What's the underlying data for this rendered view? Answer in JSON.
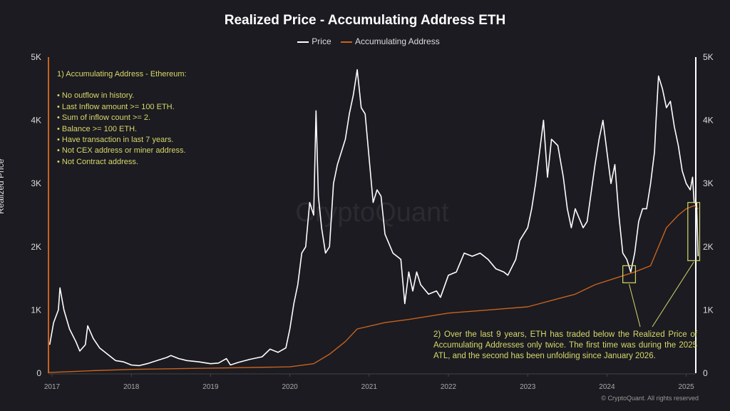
{
  "chart_data": {
    "type": "line",
    "title": "Realized Price - Accumulating Address ETH",
    "ylabel": "Realized Price",
    "ylim": [
      0,
      5000
    ],
    "xlim": [
      2016.95,
      2025.2
    ],
    "y_ticks": [
      "0",
      "1K",
      "2K",
      "3K",
      "4K",
      "5K"
    ],
    "x_ticks": [
      "2017",
      "2018",
      "2019",
      "2020",
      "2021",
      "2022",
      "2023",
      "2024",
      "2025"
    ],
    "legend_position": "top-center",
    "grid": false,
    "watermark": "CryptoQuant",
    "series": [
      {
        "name": "Price",
        "color": "#ffffff",
        "points": [
          [
            2016.97,
            450
          ],
          [
            2017.02,
            800
          ],
          [
            2017.08,
            1000
          ],
          [
            2017.1,
            1350
          ],
          [
            2017.15,
            1000
          ],
          [
            2017.22,
            700
          ],
          [
            2017.3,
            500
          ],
          [
            2017.35,
            350
          ],
          [
            2017.42,
            450
          ],
          [
            2017.45,
            750
          ],
          [
            2017.52,
            550
          ],
          [
            2017.6,
            400
          ],
          [
            2017.7,
            300
          ],
          [
            2017.8,
            200
          ],
          [
            2017.9,
            180
          ],
          [
            2018.0,
            130
          ],
          [
            2018.1,
            120
          ],
          [
            2018.2,
            150
          ],
          [
            2018.35,
            210
          ],
          [
            2018.45,
            250
          ],
          [
            2018.5,
            280
          ],
          [
            2018.6,
            230
          ],
          [
            2018.7,
            200
          ],
          [
            2018.85,
            180
          ],
          [
            2019.0,
            150
          ],
          [
            2019.1,
            160
          ],
          [
            2019.2,
            230
          ],
          [
            2019.25,
            130
          ],
          [
            2019.35,
            170
          ],
          [
            2019.5,
            220
          ],
          [
            2019.65,
            260
          ],
          [
            2019.75,
            380
          ],
          [
            2019.85,
            330
          ],
          [
            2019.95,
            400
          ],
          [
            2020.0,
            700
          ],
          [
            2020.05,
            1100
          ],
          [
            2020.1,
            1400
          ],
          [
            2020.15,
            1900
          ],
          [
            2020.2,
            2000
          ],
          [
            2020.25,
            2700
          ],
          [
            2020.3,
            2500
          ],
          [
            2020.33,
            4150
          ],
          [
            2020.36,
            2800
          ],
          [
            2020.4,
            2300
          ],
          [
            2020.45,
            1900
          ],
          [
            2020.5,
            2000
          ],
          [
            2020.55,
            3000
          ],
          [
            2020.6,
            3300
          ],
          [
            2020.65,
            3500
          ],
          [
            2020.7,
            3700
          ],
          [
            2020.75,
            4100
          ],
          [
            2020.8,
            4400
          ],
          [
            2020.85,
            4800
          ],
          [
            2020.9,
            4200
          ],
          [
            2020.95,
            4100
          ],
          [
            2021.0,
            3400
          ],
          [
            2021.05,
            2700
          ],
          [
            2021.1,
            2900
          ],
          [
            2021.15,
            2800
          ],
          [
            2021.2,
            2200
          ],
          [
            2021.3,
            1900
          ],
          [
            2021.4,
            1800
          ],
          [
            2021.45,
            1100
          ],
          [
            2021.5,
            1600
          ],
          [
            2021.55,
            1300
          ],
          [
            2021.6,
            1600
          ],
          [
            2021.65,
            1400
          ],
          [
            2021.75,
            1250
          ],
          [
            2021.85,
            1300
          ],
          [
            2021.9,
            1200
          ],
          [
            2022.0,
            1550
          ],
          [
            2022.1,
            1600
          ],
          [
            2022.2,
            1900
          ],
          [
            2022.3,
            1850
          ],
          [
            2022.4,
            1900
          ],
          [
            2022.5,
            1800
          ],
          [
            2022.6,
            1650
          ],
          [
            2022.7,
            1600
          ],
          [
            2022.75,
            1550
          ],
          [
            2022.85,
            1800
          ],
          [
            2022.9,
            2100
          ],
          [
            2023.0,
            2300
          ],
          [
            2023.05,
            2600
          ],
          [
            2023.1,
            3000
          ],
          [
            2023.15,
            3500
          ],
          [
            2023.2,
            4000
          ],
          [
            2023.25,
            3100
          ],
          [
            2023.3,
            3700
          ],
          [
            2023.38,
            3600
          ],
          [
            2023.45,
            3100
          ],
          [
            2023.5,
            2600
          ],
          [
            2023.55,
            2300
          ],
          [
            2023.6,
            2600
          ],
          [
            2023.7,
            2300
          ],
          [
            2023.75,
            2400
          ],
          [
            2023.85,
            3300
          ],
          [
            2023.9,
            3700
          ],
          [
            2023.95,
            4000
          ],
          [
            2024.0,
            3500
          ],
          [
            2024.05,
            3000
          ],
          [
            2024.1,
            3300
          ],
          [
            2024.15,
            2500
          ],
          [
            2024.2,
            1900
          ],
          [
            2024.25,
            1800
          ],
          [
            2024.3,
            1600
          ],
          [
            2024.35,
            1900
          ],
          [
            2024.4,
            2400
          ],
          [
            2024.45,
            2600
          ],
          [
            2024.5,
            2600
          ],
          [
            2024.55,
            3000
          ],
          [
            2024.6,
            3500
          ],
          [
            2024.62,
            4000
          ],
          [
            2024.65,
            4700
          ],
          [
            2024.7,
            4500
          ],
          [
            2024.75,
            4200
          ],
          [
            2024.8,
            4300
          ],
          [
            2024.85,
            3900
          ],
          [
            2024.9,
            3600
          ],
          [
            2024.95,
            3200
          ],
          [
            2025.0,
            3000
          ],
          [
            2025.05,
            2900
          ],
          [
            2025.08,
            3100
          ],
          [
            2025.1,
            2700
          ],
          [
            2025.13,
            2700
          ],
          [
            2025.15,
            1850
          ]
        ]
      },
      {
        "name": "Accumulating Address",
        "color": "#c8621e",
        "points": [
          [
            2016.95,
            10
          ],
          [
            2017.5,
            40
          ],
          [
            2018.0,
            60
          ],
          [
            2019.0,
            80
          ],
          [
            2020.0,
            100
          ],
          [
            2020.3,
            150
          ],
          [
            2020.5,
            300
          ],
          [
            2020.7,
            500
          ],
          [
            2020.85,
            700
          ],
          [
            2021.2,
            800
          ],
          [
            2021.5,
            850
          ],
          [
            2022.0,
            950
          ],
          [
            2022.5,
            1000
          ],
          [
            2023.0,
            1050
          ],
          [
            2023.3,
            1150
          ],
          [
            2023.6,
            1250
          ],
          [
            2023.85,
            1400
          ],
          [
            2024.1,
            1500
          ],
          [
            2024.35,
            1600
          ],
          [
            2024.55,
            1700
          ],
          [
            2024.65,
            2000
          ],
          [
            2024.75,
            2300
          ],
          [
            2024.9,
            2500
          ],
          [
            2025.0,
            2600
          ],
          [
            2025.1,
            2650
          ],
          [
            2025.15,
            2600
          ]
        ]
      }
    ],
    "highlights": [
      {
        "x": [
          2024.2,
          2024.36
        ],
        "y": [
          1430,
          1700
        ]
      },
      {
        "x": [
          2025.02,
          2025.17
        ],
        "y": [
          1780,
          2700
        ]
      }
    ],
    "annotation_color": "#d8d86a"
  },
  "notes": {
    "note1_title": "1) Accumulating Address - Ethereum:",
    "note1_items": [
      "• No outflow in history.",
      "• Last Inflow amount >= 100 ETH.",
      "• Sum of inflow count >= 2.",
      "• Balance >= 100 ETH.",
      "• Have transaction in last 7 years.",
      "• Not CEX address or miner address.",
      "• Not Contract address."
    ],
    "note2": "2) Over the last 9 years, ETH has traded below the Realized Price of Accumulating Addresses only twice. The first time was during the 2025 ATL, and the second has been unfolding since January 2026."
  },
  "copyright": "© CryptoQuant. All rights reserved"
}
